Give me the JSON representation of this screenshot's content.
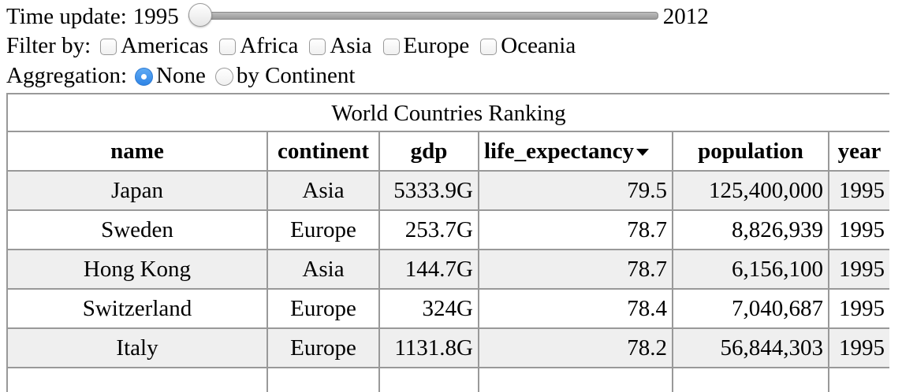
{
  "controls": {
    "time_label": "Time update:",
    "time_start": "1995",
    "time_end": "2012",
    "time_progress": 0.0,
    "filter_label": "Filter by:",
    "filters": [
      {
        "label": "Americas",
        "checked": false
      },
      {
        "label": "Africa",
        "checked": false
      },
      {
        "label": "Asia",
        "checked": false
      },
      {
        "label": "Europe",
        "checked": false
      },
      {
        "label": "Oceania",
        "checked": false
      }
    ],
    "aggregation_label": "Aggregation:",
    "aggregations": [
      {
        "label": "None",
        "selected": true
      },
      {
        "label": "by Continent",
        "selected": false
      }
    ]
  },
  "table": {
    "caption": "World Countries Ranking",
    "columns": [
      "name",
      "continent",
      "gdp",
      "life_expectancy",
      "population",
      "year"
    ],
    "sorted_column": "life_expectancy",
    "rows": [
      {
        "name": "Japan",
        "continent": "Asia",
        "gdp": "5333.9G",
        "life_expectancy": "79.5",
        "population": "125,400,000",
        "year": "1995"
      },
      {
        "name": "Sweden",
        "continent": "Europe",
        "gdp": "253.7G",
        "life_expectancy": "78.7",
        "population": "8,826,939",
        "year": "1995"
      },
      {
        "name": "Hong Kong",
        "continent": "Asia",
        "gdp": "144.7G",
        "life_expectancy": "78.7",
        "population": "6,156,100",
        "year": "1995"
      },
      {
        "name": "Switzerland",
        "continent": "Europe",
        "gdp": "324G",
        "life_expectancy": "78.4",
        "population": "7,040,687",
        "year": "1995"
      },
      {
        "name": "Italy",
        "continent": "Europe",
        "gdp": "1131.8G",
        "life_expectancy": "78.2",
        "population": "56,844,303",
        "year": "1995"
      },
      {
        "name": "",
        "continent": "",
        "gdp": "",
        "life_expectancy": "",
        "population": "",
        "year": ""
      }
    ]
  }
}
